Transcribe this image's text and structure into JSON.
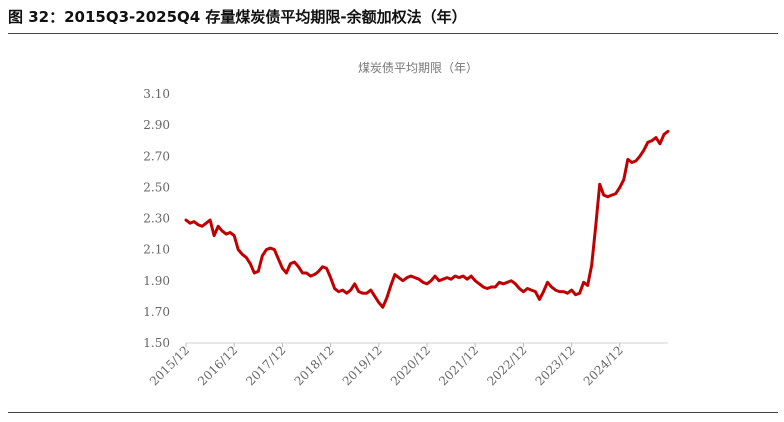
{
  "figure": {
    "caption": "图 32：2015Q3-2025Q4 存量煤炭债平均期限-余额加权法（年）"
  },
  "chart_data": {
    "type": "line",
    "title": "煤炭债平均期限（年）",
    "xlabel": "",
    "ylabel": "",
    "ylim": [
      1.5,
      3.1
    ],
    "yticks": [
      1.5,
      1.7,
      1.9,
      2.1,
      2.3,
      2.5,
      2.7,
      2.9,
      3.1
    ],
    "ytick_labels": [
      "1.50",
      "1.70",
      "1.90",
      "2.10",
      "2.30",
      "2.50",
      "2.70",
      "2.90",
      "3.10"
    ],
    "xtick_labels": [
      "2015/12",
      "2016/12",
      "2017/12",
      "2018/12",
      "2019/12",
      "2020/12",
      "2021/12",
      "2022/12",
      "2023/12",
      "2024/12"
    ],
    "grid": false,
    "legend": "none",
    "line_color": "#c00000",
    "x_note": "monthly points starting 2015/12",
    "series": [
      {
        "name": "",
        "values": [
          2.29,
          2.27,
          2.28,
          2.26,
          2.25,
          2.27,
          2.29,
          2.19,
          2.25,
          2.22,
          2.2,
          2.21,
          2.19,
          2.1,
          2.07,
          2.05,
          2.01,
          1.95,
          1.96,
          2.06,
          2.1,
          2.11,
          2.1,
          2.04,
          1.98,
          1.95,
          2.01,
          2.02,
          1.99,
          1.95,
          1.95,
          1.93,
          1.94,
          1.96,
          1.99,
          1.98,
          1.92,
          1.85,
          1.83,
          1.84,
          1.82,
          1.84,
          1.88,
          1.83,
          1.82,
          1.82,
          1.84,
          1.8,
          1.76,
          1.73,
          1.79,
          1.87,
          1.94,
          1.92,
          1.9,
          1.92,
          1.93,
          1.92,
          1.91,
          1.89,
          1.88,
          1.9,
          1.93,
          1.9,
          1.91,
          1.92,
          1.91,
          1.93,
          1.92,
          1.93,
          1.91,
          1.93,
          1.9,
          1.88,
          1.86,
          1.85,
          1.86,
          1.86,
          1.89,
          1.88,
          1.89,
          1.9,
          1.88,
          1.85,
          1.83,
          1.85,
          1.84,
          1.83,
          1.78,
          1.83,
          1.89,
          1.86,
          1.84,
          1.83,
          1.83,
          1.82,
          1.84,
          1.81,
          1.82,
          1.89,
          1.87,
          2.0,
          2.25,
          2.52,
          2.45,
          2.44,
          2.45,
          2.46,
          2.5,
          2.55,
          2.68,
          2.66,
          2.67,
          2.7,
          2.74,
          2.79,
          2.8,
          2.82,
          2.78,
          2.84,
          2.86
        ]
      }
    ]
  }
}
